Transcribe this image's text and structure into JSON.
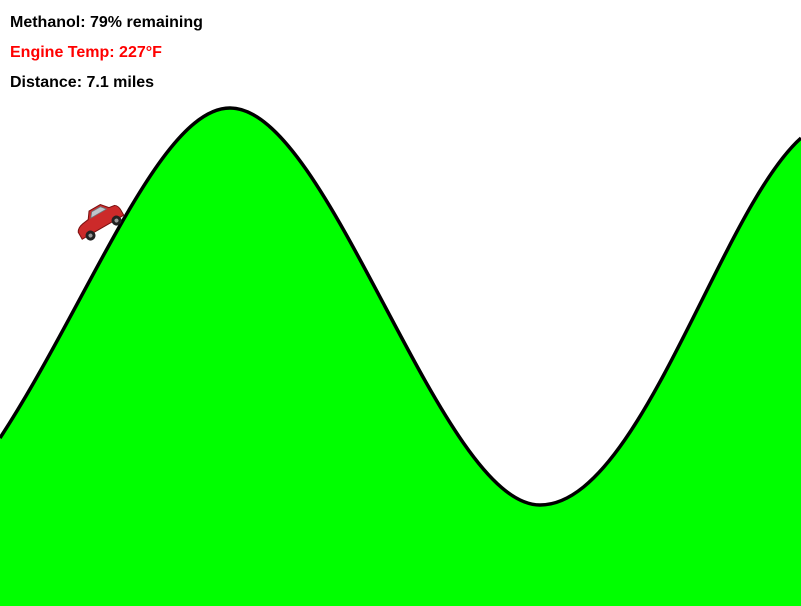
{
  "hud": {
    "fuel": "Methanol: 79% remaining",
    "temperature": "Engine Temp: 227°F",
    "distance": "Distance: 7.1 miles"
  },
  "colors": {
    "background": "#ffffff",
    "hill_fill": "#00ff00",
    "hill_outline": "#000000",
    "temperature_warning": "#ff0000",
    "car_body": "#cc2a2a",
    "car_window": "#bfc6cc",
    "car_tire": "#222222"
  },
  "icons": {
    "vehicle": "car-icon"
  }
}
